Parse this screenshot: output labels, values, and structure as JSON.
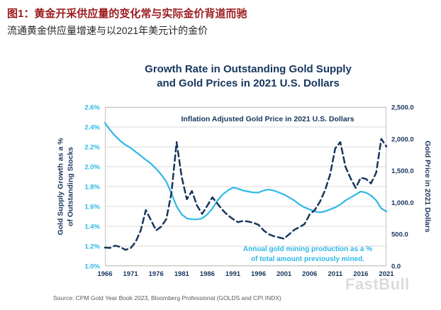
{
  "header": {
    "figure_title": "图1：黄金开采供应量的变化常与实际金价背道而驰",
    "figure_subtitle": "流通黄金供应量增速与以2021年美元计的金价"
  },
  "chart": {
    "title_line1": "Growth Rate in Outstanding Gold Supply",
    "title_line2": "and Gold Prices in 2021 U.S. Dollars",
    "left_axis_title_line1": "Gold Supply Growth as a %",
    "left_axis_title_line2": "of Outstanding Stocks",
    "right_axis_title": "Gold Price in 2021 Dollars",
    "price_annotation": "Inflation Adjusted Gold Price in 2021 U.S. Dollars",
    "supply_annotation_line1": "Annual gold mining production as a %",
    "supply_annotation_line2": "of total amount previously mined."
  },
  "source": "Source: CPM Gold Year Book 2023, Bloomberg Professional (GOLDS and CPI INDX)",
  "watermark": "FastBull",
  "colors": {
    "cyan": "#2eb8e6",
    "navy": "#17365d",
    "grid": "#d9d9d9",
    "border": "#c4c4c4",
    "figure_title_red": "#9b1b1e",
    "source_gray": "#595959"
  },
  "chart_data": {
    "type": "line",
    "title": "Growth Rate in Outstanding Gold Supply and Gold Prices in 2021 U.S. Dollars",
    "grid": "horizontal",
    "x": [
      1966,
      1967,
      1968,
      1969,
      1970,
      1971,
      1972,
      1973,
      1974,
      1975,
      1976,
      1977,
      1978,
      1979,
      1980,
      1981,
      1982,
      1983,
      1984,
      1985,
      1986,
      1987,
      1988,
      1989,
      1990,
      1991,
      1992,
      1993,
      1994,
      1995,
      1996,
      1997,
      1998,
      1999,
      2000,
      2001,
      2002,
      2003,
      2004,
      2005,
      2006,
      2007,
      2008,
      2009,
      2010,
      2011,
      2012,
      2013,
      2014,
      2015,
      2016,
      2017,
      2018,
      2019,
      2020,
      2021
    ],
    "x_ticks": [
      1966,
      1971,
      1976,
      1981,
      1986,
      1991,
      1996,
      2001,
      2006,
      2011,
      2016,
      2021
    ],
    "left_axis": {
      "label": "Gold Supply Growth as a % of Outstanding Stocks",
      "range": [
        1.0,
        2.6
      ],
      "tick_values": [
        2.6,
        2.4,
        2.2,
        2.0,
        1.8,
        1.6,
        1.4,
        1.2,
        1.0
      ],
      "tick_labels": [
        "2.6%",
        "2.4%",
        "2.2%",
        "2.0%",
        "1.8%",
        "1.6%",
        "1.4%",
        "1.2%",
        "1.0%"
      ]
    },
    "right_axis": {
      "label": "Gold Price in 2021 Dollars",
      "range": [
        0,
        2500
      ],
      "tick_values": [
        2500,
        2000,
        1500,
        1000,
        500,
        0
      ],
      "tick_labels": [
        "2,500.0",
        "2,000.0",
        "1,500.0",
        "1,000.0",
        "500.0",
        "0.0"
      ]
    },
    "series": [
      {
        "name": "Annual gold mining production as a % of total amount previously mined",
        "axis": "left",
        "style": "solid",
        "color": "#2eb8e6",
        "values": [
          2.44,
          2.37,
          2.31,
          2.26,
          2.22,
          2.19,
          2.15,
          2.11,
          2.07,
          2.03,
          1.98,
          1.92,
          1.85,
          1.73,
          1.6,
          1.52,
          1.48,
          1.47,
          1.47,
          1.48,
          1.52,
          1.58,
          1.66,
          1.72,
          1.76,
          1.79,
          1.78,
          1.76,
          1.75,
          1.74,
          1.74,
          1.76,
          1.77,
          1.76,
          1.74,
          1.72,
          1.69,
          1.66,
          1.62,
          1.59,
          1.57,
          1.55,
          1.54,
          1.55,
          1.57,
          1.59,
          1.62,
          1.66,
          1.69,
          1.72,
          1.75,
          1.74,
          1.71,
          1.66,
          1.58,
          1.55
        ]
      },
      {
        "name": "Inflation Adjusted Gold Price in 2021 U.S. Dollars",
        "axis": "right",
        "style": "dashed",
        "color": "#17365d",
        "values": [
          290,
          285,
          320,
          300,
          255,
          280,
          380,
          560,
          880,
          720,
          560,
          620,
          740,
          1150,
          1950,
          1400,
          1050,
          1180,
          950,
          820,
          950,
          1080,
          980,
          880,
          800,
          740,
          690,
          710,
          700,
          680,
          650,
          560,
          500,
          470,
          450,
          430,
          500,
          570,
          610,
          660,
          810,
          880,
          1010,
          1190,
          1440,
          1850,
          1950,
          1560,
          1380,
          1230,
          1390,
          1370,
          1300,
          1470,
          2000,
          1880
        ]
      }
    ]
  }
}
